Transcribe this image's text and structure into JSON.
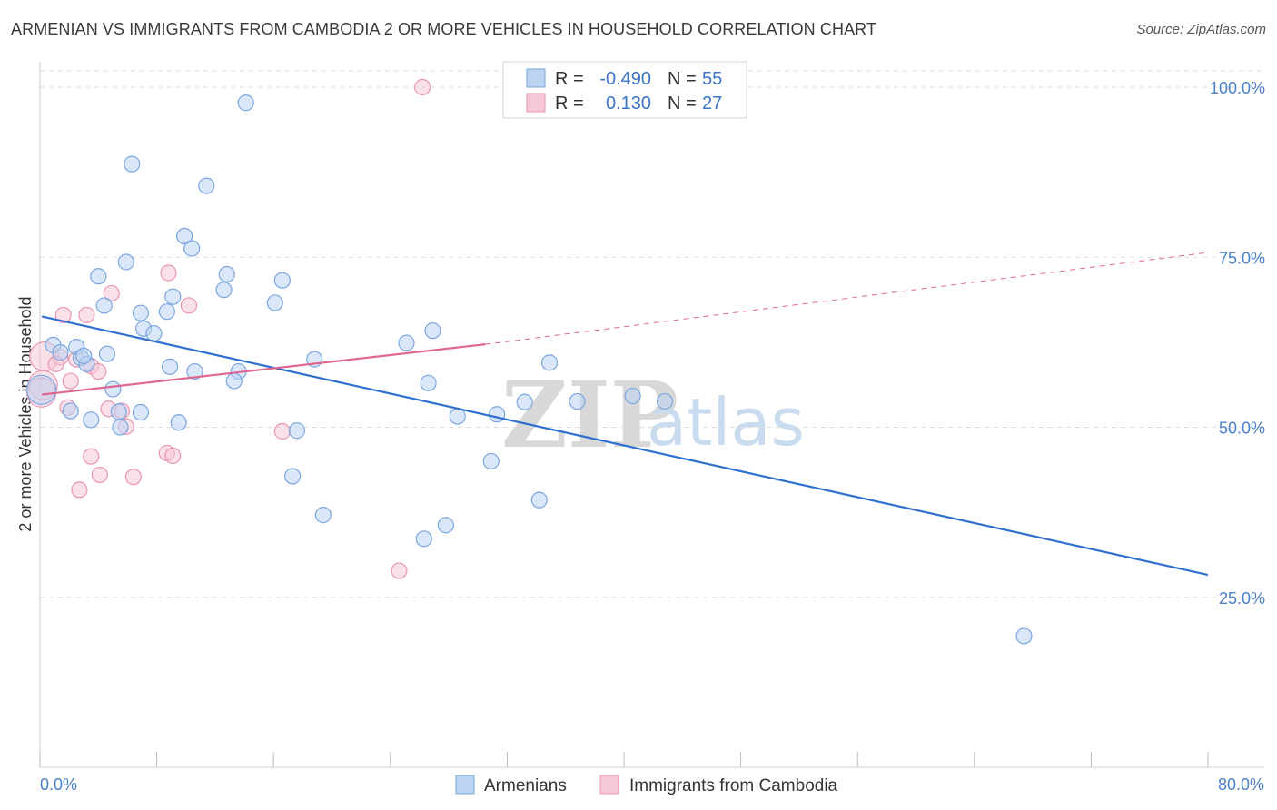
{
  "title": "ARMENIAN VS IMMIGRANTS FROM CAMBODIA 2 OR MORE VEHICLES IN HOUSEHOLD CORRELATION CHART",
  "source": "Source: ZipAtlas.com",
  "watermark": {
    "zip": "ZIP",
    "atlas": "atlas"
  },
  "legend_box": {
    "rows": [
      {
        "r_label": "R =",
        "r_value": "-0.490",
        "n_label": "N =",
        "n_value": "55"
      },
      {
        "r_label": "R =",
        "r_value": "0.130",
        "n_label": "N =",
        "n_value": "27"
      }
    ]
  },
  "bottom_legend": [
    "Armenians",
    "Immigrants from Cambodia"
  ],
  "colors": {
    "armenians_fill": "#bcd4f2",
    "armenians_stroke": "#7aa7e0",
    "armenians_line": "#2f6fcf",
    "cambodia_fill": "#f6c7d6",
    "cambodia_stroke": "#e896b1",
    "cambodia_line": "#e06692",
    "tick_text": "#4a7fc9",
    "grid": "#dddddd"
  },
  "chart_data": {
    "type": "scatter",
    "title": "ARMENIAN VS IMMIGRANTS FROM CAMBODIA 2 OR MORE VEHICLES IN HOUSEHOLD CORRELATION CHART",
    "xlabel": "",
    "ylabel": "2 or more Vehicles in Household",
    "xlim": [
      0,
      80
    ],
    "ylim": [
      0,
      102
    ],
    "x_tick_labels": [
      "0.0%",
      "80.0%"
    ],
    "y_ticks": [
      25,
      50,
      75,
      100
    ],
    "y_tick_labels": [
      "25.0%",
      "50.0%",
      "75.0%",
      "100.0%"
    ],
    "grid": true,
    "series": [
      {
        "name": "Armenians",
        "R": -0.49,
        "N": 55,
        "points": [
          [
            14.1,
            97.7
          ],
          [
            6.3,
            88.7
          ],
          [
            11.4,
            85.5
          ],
          [
            9.9,
            78.1
          ],
          [
            10.4,
            76.3
          ],
          [
            5.9,
            74.3
          ],
          [
            4.0,
            72.2
          ],
          [
            12.8,
            72.5
          ],
          [
            16.6,
            71.6
          ],
          [
            12.6,
            70.2
          ],
          [
            9.1,
            69.2
          ],
          [
            16.1,
            68.3
          ],
          [
            4.4,
            67.9
          ],
          [
            8.7,
            67.0
          ],
          [
            6.9,
            66.8
          ],
          [
            7.1,
            64.5
          ],
          [
            7.8,
            63.8
          ],
          [
            26.9,
            64.2
          ],
          [
            25.1,
            62.4
          ],
          [
            0.9,
            62.1
          ],
          [
            2.5,
            61.8
          ],
          [
            1.4,
            61.0
          ],
          [
            4.6,
            60.8
          ],
          [
            2.8,
            60.2
          ],
          [
            18.8,
            60.0
          ],
          [
            34.9,
            59.5
          ],
          [
            3.2,
            59.3
          ],
          [
            8.9,
            58.9
          ],
          [
            10.6,
            58.2
          ],
          [
            13.6,
            58.2
          ],
          [
            13.3,
            56.8
          ],
          [
            26.6,
            56.5
          ],
          [
            5.0,
            55.6
          ],
          [
            40.6,
            54.6
          ],
          [
            42.8,
            53.8
          ],
          [
            36.8,
            53.8
          ],
          [
            33.2,
            53.7
          ],
          [
            2.1,
            52.4
          ],
          [
            6.9,
            52.2
          ],
          [
            5.4,
            52.3
          ],
          [
            31.3,
            51.9
          ],
          [
            28.6,
            51.6
          ],
          [
            3.5,
            51.1
          ],
          [
            9.5,
            50.7
          ],
          [
            5.5,
            50.0
          ],
          [
            17.6,
            49.5
          ],
          [
            30.9,
            45.0
          ],
          [
            17.3,
            42.8
          ],
          [
            34.2,
            39.3
          ],
          [
            19.4,
            37.1
          ],
          [
            27.8,
            35.6
          ],
          [
            26.3,
            33.6
          ],
          [
            67.4,
            19.3
          ],
          [
            0.1,
            55.5
          ],
          [
            3.0,
            60.5
          ]
        ],
        "trend": {
          "x": [
            0,
            80
          ],
          "y": [
            66.3,
            28.3
          ]
        }
      },
      {
        "name": "Immigrants from Cambodia",
        "R": 0.13,
        "N": 27,
        "points": [
          [
            26.2,
            100.0
          ],
          [
            8.8,
            72.7
          ],
          [
            4.9,
            69.7
          ],
          [
            10.2,
            67.9
          ],
          [
            1.6,
            66.5
          ],
          [
            3.2,
            66.5
          ],
          [
            0.3,
            60.4
          ],
          [
            1.4,
            60.3
          ],
          [
            1.1,
            59.3
          ],
          [
            3.5,
            59.0
          ],
          [
            4.0,
            58.2
          ],
          [
            2.1,
            56.8
          ],
          [
            0.2,
            56.2
          ],
          [
            0.1,
            55.1
          ],
          [
            1.9,
            52.9
          ],
          [
            4.7,
            52.7
          ],
          [
            5.6,
            52.4
          ],
          [
            5.9,
            50.1
          ],
          [
            16.6,
            49.4
          ],
          [
            8.7,
            46.2
          ],
          [
            3.5,
            45.7
          ],
          [
            9.1,
            45.8
          ],
          [
            4.1,
            43.0
          ],
          [
            6.4,
            42.7
          ],
          [
            2.7,
            40.8
          ],
          [
            24.6,
            28.9
          ],
          [
            2.5,
            60.0
          ]
        ],
        "trend": {
          "x": [
            0,
            30.5
          ],
          "y": [
            54.8,
            62.2
          ]
        },
        "trend_extension": {
          "x": [
            30.5,
            80
          ],
          "y": [
            62.2,
            75.7
          ]
        }
      }
    ]
  }
}
